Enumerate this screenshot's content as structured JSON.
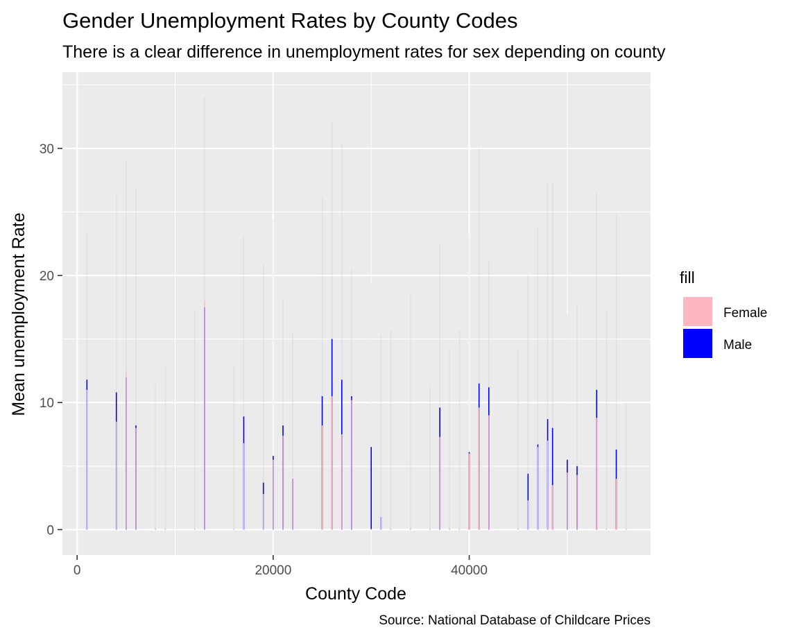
{
  "chart_data": {
    "type": "bar",
    "title": "Gender Unemployment Rates by County Codes",
    "subtitle": "There is a clear difference in unemployment rates for sex depending on county",
    "xlabel": "County Code",
    "ylabel": "Mean unemployment Rate",
    "caption": "Source: National Database of Childcare Prices",
    "xlim": [
      -1500,
      58500
    ],
    "ylim": [
      -2,
      36
    ],
    "x_ticks": [
      0,
      20000,
      40000
    ],
    "x_tick_labels": [
      "0",
      "20000",
      "40000"
    ],
    "y_ticks": [
      0,
      10,
      20,
      30
    ],
    "y_tick_labels": [
      "0",
      "10",
      "20",
      "30"
    ],
    "grid": true,
    "legend": {
      "title": "fill",
      "position": "right",
      "entries": [
        {
          "label": "Female",
          "color": "#FFB6C1"
        },
        {
          "label": "Male",
          "color": "#0000FF"
        }
      ]
    },
    "series": [
      {
        "name": "Female",
        "color": "#FFB6C1",
        "points": [
          [
            1000,
            11.0
          ],
          [
            4000,
            8.5
          ],
          [
            5000,
            12.5
          ],
          [
            6000,
            8.0
          ],
          [
            8000,
            0
          ],
          [
            9000,
            0
          ],
          [
            12000,
            0
          ],
          [
            13000,
            18.0
          ],
          [
            16000,
            0
          ],
          [
            17000,
            6.8
          ],
          [
            19000,
            2.8
          ],
          [
            20000,
            5.5
          ],
          [
            21000,
            7.4
          ],
          [
            22000,
            4.0
          ],
          [
            25000,
            8.2
          ],
          [
            26000,
            10.5
          ],
          [
            27000,
            7.5
          ],
          [
            28000,
            10.2
          ],
          [
            30000,
            0
          ],
          [
            31000,
            1.0
          ],
          [
            32000,
            0
          ],
          [
            34000,
            0
          ],
          [
            36000,
            0
          ],
          [
            37000,
            7.3
          ],
          [
            38000,
            0
          ],
          [
            39000,
            0
          ],
          [
            40000,
            6.0
          ],
          [
            41000,
            9.6
          ],
          [
            42000,
            9.0
          ],
          [
            45000,
            0
          ],
          [
            46000,
            2.3
          ],
          [
            47000,
            6.5
          ],
          [
            48000,
            7.0
          ],
          [
            48500,
            3.5
          ],
          [
            50000,
            4.5
          ],
          [
            51000,
            4.3
          ],
          [
            53000,
            8.8
          ],
          [
            54000,
            0
          ],
          [
            55000,
            4.0
          ],
          [
            56000,
            0
          ]
        ]
      },
      {
        "name": "Male",
        "color": "#0000FF",
        "points": [
          [
            1000,
            11.8
          ],
          [
            4000,
            10.8
          ],
          [
            5000,
            12.0
          ],
          [
            6000,
            8.2
          ],
          [
            8000,
            0
          ],
          [
            9000,
            0
          ],
          [
            12000,
            0
          ],
          [
            13000,
            17.5
          ],
          [
            16000,
            0
          ],
          [
            17000,
            8.9
          ],
          [
            19000,
            3.7
          ],
          [
            20000,
            5.8
          ],
          [
            21000,
            8.2
          ],
          [
            22000,
            4.0
          ],
          [
            25000,
            10.5
          ],
          [
            26000,
            15.0
          ],
          [
            27000,
            11.8
          ],
          [
            28000,
            10.5
          ],
          [
            30000,
            6.5
          ],
          [
            31000,
            1.0
          ],
          [
            32000,
            0
          ],
          [
            34000,
            0
          ],
          [
            36000,
            0
          ],
          [
            37000,
            9.6
          ],
          [
            38000,
            0
          ],
          [
            39000,
            0
          ],
          [
            40000,
            6.1
          ],
          [
            41000,
            11.5
          ],
          [
            42000,
            11.2
          ],
          [
            45000,
            0
          ],
          [
            46000,
            4.4
          ],
          [
            47000,
            6.7
          ],
          [
            48000,
            8.7
          ],
          [
            48500,
            8.0
          ],
          [
            50000,
            5.5
          ],
          [
            51000,
            5.0
          ],
          [
            53000,
            11.0
          ],
          [
            54000,
            0
          ],
          [
            55000,
            6.3
          ],
          [
            56000,
            0
          ]
        ]
      }
    ]
  }
}
